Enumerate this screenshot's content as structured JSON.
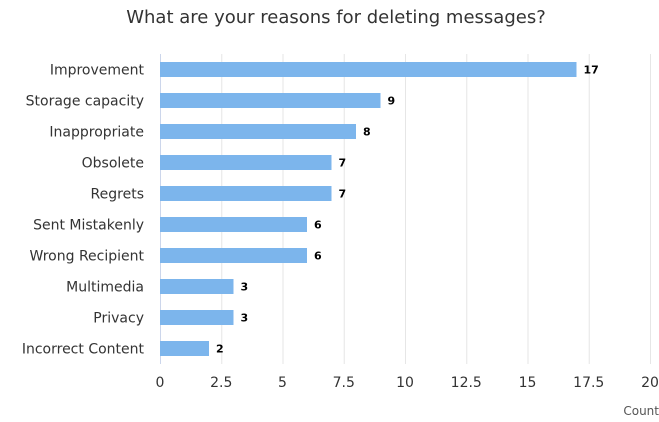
{
  "chart_data": {
    "type": "bar",
    "orientation": "horizontal",
    "title": "What are your reasons for deleting messages?",
    "xlabel": "Count",
    "ylabel": "",
    "categories": [
      "Improvement",
      "Storage capacity",
      "Inappropriate",
      "Obsolete",
      "Regrets",
      "Sent Mistakenly",
      "Wrong Recipient",
      "Multimedia",
      "Privacy",
      "Incorrect Content"
    ],
    "values": [
      17,
      9,
      8,
      7,
      7,
      6,
      6,
      3,
      3,
      2
    ],
    "xlim": [
      0,
      20
    ],
    "ticks": [
      "0",
      "2.5",
      "5",
      "7.5",
      "10",
      "12.5",
      "15",
      "17.5",
      "20"
    ],
    "grid": true,
    "data_labels": true,
    "bar_color": "#7cb5ec"
  }
}
